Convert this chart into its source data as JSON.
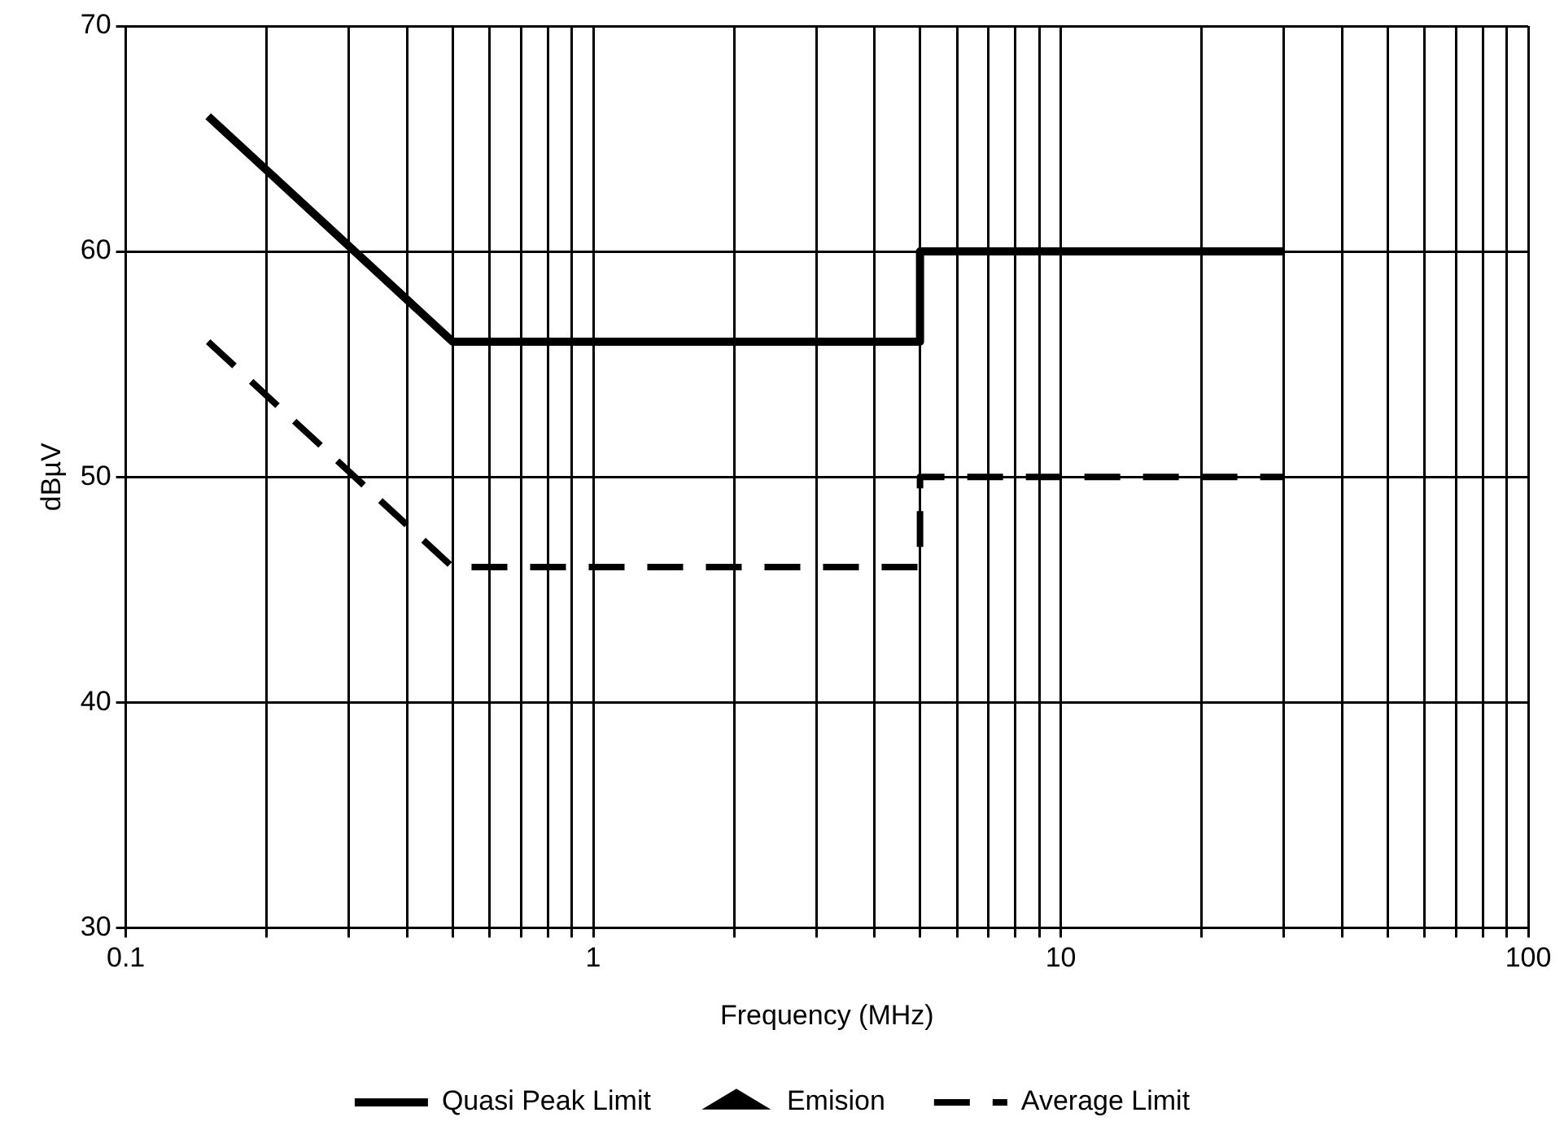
{
  "chart_data": {
    "type": "line",
    "xlabel": "Frequency (MHz)",
    "ylabel": "dBµV",
    "xlim": [
      0.1,
      100
    ],
    "ylim": [
      30,
      70
    ],
    "log": "x",
    "grid": true,
    "legend": "bottom",
    "xticks": [
      0.1,
      {
        "value": 0.2,
        "label": null
      },
      {
        "value": 0.3,
        "label": null
      },
      {
        "value": 0.4,
        "label": null
      },
      {
        "value": 0.5,
        "label": null
      },
      {
        "value": 0.6,
        "label": null
      },
      {
        "value": 0.7,
        "label": null
      },
      {
        "value": 0.8,
        "label": null
      },
      {
        "value": 0.9,
        "label": null
      },
      1,
      {
        "value": 2,
        "label": null
      },
      {
        "value": 3,
        "label": null
      },
      {
        "value": 4,
        "label": null
      },
      {
        "value": 5,
        "label": null
      },
      {
        "value": 6,
        "label": null
      },
      {
        "value": 7,
        "label": null
      },
      {
        "value": 8,
        "label": null
      },
      {
        "value": 9,
        "label": null
      },
      10,
      {
        "value": 20,
        "label": null
      },
      {
        "value": 30,
        "label": null
      },
      {
        "value": 40,
        "label": null
      },
      {
        "value": 50,
        "label": null
      },
      {
        "value": 60,
        "label": null
      },
      {
        "value": 70,
        "label": null
      },
      {
        "value": 80,
        "label": null
      },
      {
        "value": 90,
        "label": null
      },
      100
    ],
    "yticks": [
      30,
      40,
      50,
      60,
      70
    ],
    "series": [
      {
        "name": "Quasi Peak Limit",
        "color": "#000000",
        "line_style": "solid",
        "marker": "none",
        "x": [
          0.15,
          0.5,
          5,
          5,
          30
        ],
        "values": [
          66,
          56,
          56,
          60,
          60
        ]
      },
      {
        "name": "Emision",
        "color": "#000000",
        "type": "scatter",
        "marker": "triangle"
      },
      {
        "name": "Average Limit",
        "color": "#000000",
        "line_style": "dashed",
        "marker": "none",
        "x": [
          0.15,
          0.5,
          5,
          5,
          30
        ],
        "values": [
          56,
          46,
          46,
          50,
          50
        ]
      }
    ]
  }
}
